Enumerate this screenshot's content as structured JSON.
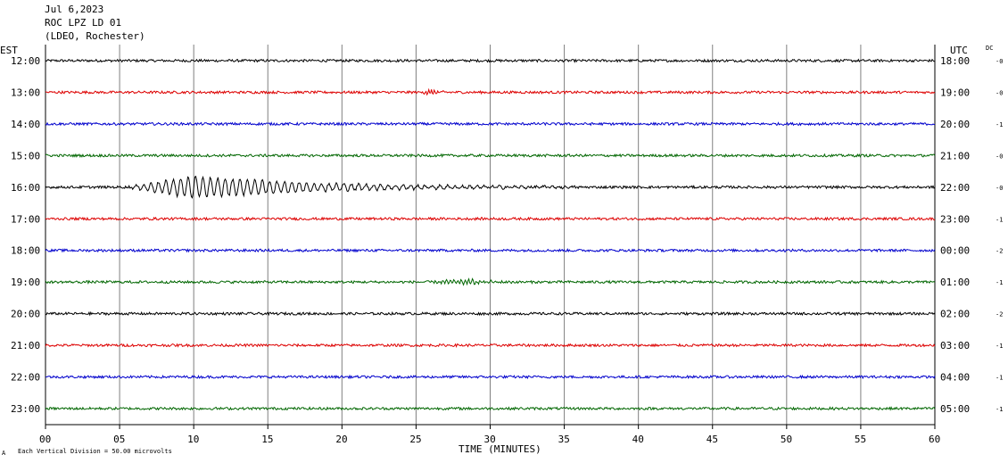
{
  "header": {
    "date": "Jul 6,2023",
    "station": "ROC LPZ LD 01",
    "network": "(LDEO, Rochester)"
  },
  "labels": {
    "left_tz": "EST",
    "right_tz": "UTC",
    "dc": "DC",
    "x_axis": "TIME (MINUTES)",
    "footnote_prefix": "A",
    "footnote": "Each Vertical Division =   50.00 microvolts"
  },
  "colors": {
    "black": "#000000",
    "red": "#dd0000",
    "blue": "#0000cc",
    "green": "#006600",
    "grid": "#808080"
  },
  "chart_data": {
    "type": "line",
    "title": "Jul 6,2023",
    "xlabel": "TIME (MINUTES)",
    "xlim": [
      0,
      60
    ],
    "x_ticks": [
      "00",
      "05",
      "10",
      "15",
      "20",
      "25",
      "30",
      "35",
      "40",
      "45",
      "50",
      "55",
      "60"
    ],
    "rows": [
      {
        "est": "12:00",
        "utc": "18:00",
        "dc": "-0",
        "color": "black"
      },
      {
        "est": "13:00",
        "utc": "19:00",
        "dc": "-0",
        "color": "red"
      },
      {
        "est": "14:00",
        "utc": "20:00",
        "dc": "-1",
        "color": "blue"
      },
      {
        "est": "15:00",
        "utc": "21:00",
        "dc": "-0",
        "color": "green"
      },
      {
        "est": "16:00",
        "utc": "22:00",
        "dc": "-0",
        "color": "black"
      },
      {
        "est": "17:00",
        "utc": "23:00",
        "dc": "-1",
        "color": "red"
      },
      {
        "est": "18:00",
        "utc": "00:00",
        "dc": "-2",
        "color": "blue"
      },
      {
        "est": "19:00",
        "utc": "01:00",
        "dc": "-1",
        "color": "green"
      },
      {
        "est": "20:00",
        "utc": "02:00",
        "dc": "-2",
        "color": "black"
      },
      {
        "est": "21:00",
        "utc": "03:00",
        "dc": "-1",
        "color": "red"
      },
      {
        "est": "22:00",
        "utc": "04:00",
        "dc": "-1",
        "color": "blue"
      },
      {
        "est": "23:00",
        "utc": "05:00",
        "dc": "-1",
        "color": "green"
      }
    ],
    "events": [
      {
        "row": "16:00",
        "start_min": 5.5,
        "end_min": 36,
        "peak_min": 10,
        "amplitude_divisions": 0.35,
        "period_min": 0.5
      },
      {
        "row": "13:00",
        "start_min": 25,
        "end_min": 27.5,
        "peak_min": 26,
        "amplitude_divisions": 0.08,
        "period_min": 0.2
      },
      {
        "row": "19:00",
        "start_min": 26,
        "end_min": 32,
        "peak_min": 28.5,
        "amplitude_divisions": 0.1,
        "period_min": 0.25
      }
    ],
    "noise_amplitude_divisions": 0.04,
    "vertical_division_microvolts": 50.0
  }
}
